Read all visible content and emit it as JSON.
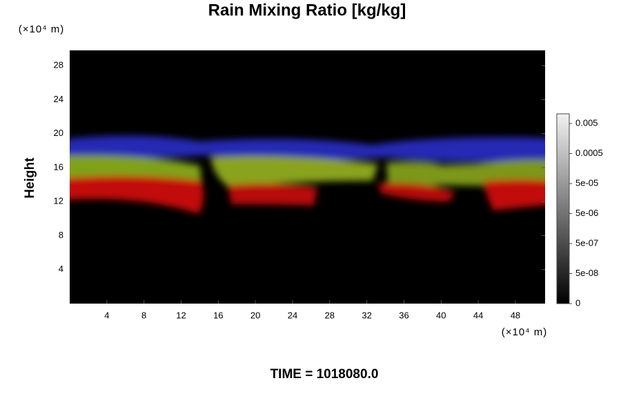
{
  "chart_data": {
    "type": "field",
    "title": "Rain Mixing Ratio [kg/kg]",
    "y_label": "Height",
    "x_unit": "(×10⁴ m)",
    "y_unit": "(×10⁴ m)",
    "time_label": "TIME = 1018080.0",
    "xlim": [
      0,
      51.2
    ],
    "xticks": [
      4,
      8,
      12,
      16,
      20,
      24,
      28,
      32,
      36,
      40,
      44,
      48
    ],
    "ylim": [
      0,
      29.8
    ],
    "yticks": [
      4,
      8,
      12,
      16,
      20,
      24,
      28
    ],
    "colorbar_ticks": [
      0,
      {
        "value": 5e-08,
        "label": "5e-08"
      },
      {
        "value": 5e-07,
        "label": "5e-07"
      },
      {
        "value": 5e-06,
        "label": "5e-06"
      },
      {
        "value": 5e-05,
        "label": "5e-05"
      },
      0.0005,
      0.005
    ]
  }
}
